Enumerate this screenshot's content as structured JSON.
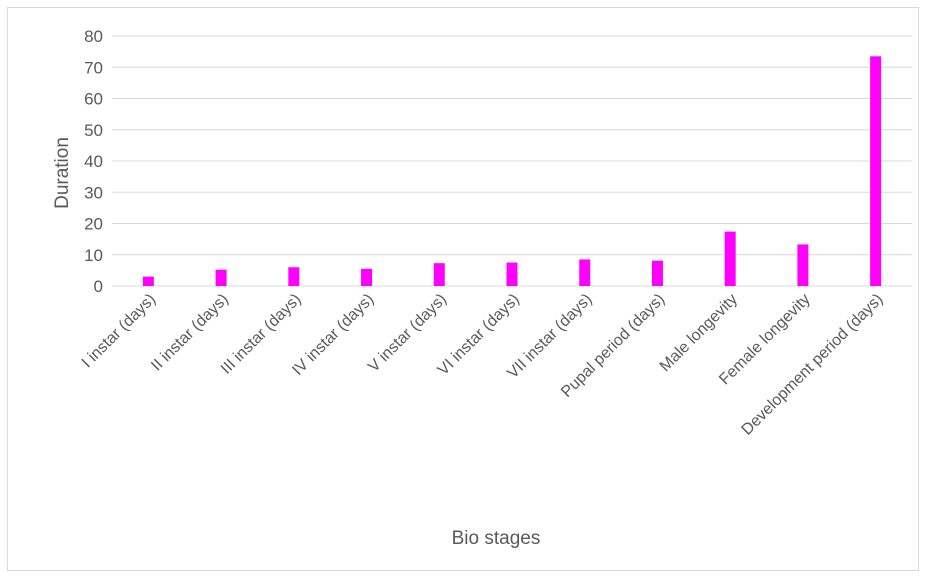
{
  "chart_data": {
    "type": "bar",
    "title": "",
    "xlabel": "Bio stages",
    "ylabel": "Duration",
    "categories": [
      "I instar (days)",
      "II instar (days)",
      "III instar (days)",
      "IV instar (days)",
      "V instar (days)",
      "VI instar (days)",
      "VII instar (days)",
      "Pupal period (days)",
      "Male longevity",
      "Female longevity",
      "Development period (days)"
    ],
    "values": [
      3.0,
      5.2,
      6.0,
      5.5,
      7.3,
      7.5,
      8.5,
      8.1,
      17.4,
      13.3,
      73.5
    ],
    "yticks": [
      0,
      10,
      20,
      30,
      40,
      50,
      60,
      70,
      80
    ],
    "ylim": [
      0,
      80
    ],
    "grid": true,
    "legend": "none",
    "bar_color": "#ff00ff",
    "gridline_color": "#d9d9d9",
    "text_color": "#595959"
  }
}
